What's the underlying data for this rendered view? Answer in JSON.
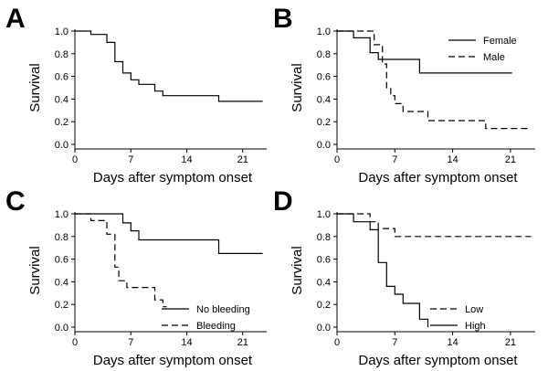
{
  "chart_data": [
    {
      "panel": "A",
      "type": "line",
      "xlabel": "Days after symptom onset",
      "ylabel": "Survival",
      "xlim": [
        0,
        24
      ],
      "ylim": [
        0,
        1
      ],
      "x_ticks": [
        "0",
        "7",
        "14",
        "21"
      ],
      "y_ticks": [
        "0.0",
        "0.2",
        "0.4",
        "0.6",
        "0.8",
        "1.0"
      ],
      "legend": null,
      "series": [
        {
          "style": "solid",
          "steps": [
            [
              0,
              1.0
            ],
            [
              2,
              0.97
            ],
            [
              3,
              0.97
            ],
            [
              4,
              0.9
            ],
            [
              5,
              0.73
            ],
            [
              6,
              0.63
            ],
            [
              7,
              0.57
            ],
            [
              8,
              0.53
            ],
            [
              10,
              0.47
            ],
            [
              11,
              0.43
            ],
            [
              18,
              0.38
            ],
            [
              23.5,
              0.38
            ]
          ]
        }
      ]
    },
    {
      "panel": "B",
      "type": "line",
      "xlabel": "Days after symptom onset",
      "ylabel": "Survival",
      "xlim": [
        0,
        24
      ],
      "ylim": [
        0,
        1
      ],
      "x_ticks": [
        "0",
        "7",
        "14",
        "21"
      ],
      "y_ticks": [
        "0.0",
        "0.2",
        "0.4",
        "0.6",
        "0.8",
        "1.0"
      ],
      "legend": "top-right",
      "series": [
        {
          "name": "Female",
          "style": "solid",
          "steps": [
            [
              0,
              1.0
            ],
            [
              2,
              0.94
            ],
            [
              4,
              0.81
            ],
            [
              5,
              0.75
            ],
            [
              10,
              0.63
            ],
            [
              21.2,
              0.63
            ]
          ]
        },
        {
          "name": "Male",
          "style": "dashed",
          "steps": [
            [
              0,
              1.0
            ],
            [
              4.5,
              0.88
            ],
            [
              5.5,
              0.71
            ],
            [
              6,
              0.5
            ],
            [
              6.5,
              0.43
            ],
            [
              7,
              0.36
            ],
            [
              8,
              0.29
            ],
            [
              11,
              0.21
            ],
            [
              18,
              0.14
            ],
            [
              23.5,
              0.14
            ]
          ]
        }
      ]
    },
    {
      "panel": "C",
      "type": "line",
      "xlabel": "Days after symptom onset",
      "ylabel": "Survival",
      "xlim": [
        0,
        24
      ],
      "ylim": [
        0,
        1
      ],
      "x_ticks": [
        "0",
        "7",
        "14",
        "21"
      ],
      "y_ticks": [
        "0.0",
        "0.2",
        "0.4",
        "0.6",
        "0.8",
        "1.0"
      ],
      "legend": "bottom-right",
      "series": [
        {
          "name": "No bleeding",
          "style": "solid",
          "steps": [
            [
              0,
              1.0
            ],
            [
              6,
              0.92
            ],
            [
              7,
              0.85
            ],
            [
              8,
              0.77
            ],
            [
              18,
              0.65
            ],
            [
              23.5,
              0.65
            ]
          ]
        },
        {
          "name": "Bleeding",
          "style": "dashed",
          "steps": [
            [
              0,
              1.0
            ],
            [
              2,
              0.94
            ],
            [
              4,
              0.82
            ],
            [
              5,
              0.53
            ],
            [
              5.5,
              0.41
            ],
            [
              6.5,
              0.35
            ],
            [
              10,
              0.24
            ],
            [
              11,
              0.18
            ],
            [
              11.5,
              0.18
            ]
          ]
        }
      ]
    },
    {
      "panel": "D",
      "type": "line",
      "xlabel": "Days after symptom onset",
      "ylabel": "Survival",
      "xlim": [
        0,
        24
      ],
      "ylim": [
        0,
        1
      ],
      "x_ticks": [
        "0",
        "7",
        "14",
        "21"
      ],
      "y_ticks": [
        "0.0",
        "0.2",
        "0.4",
        "0.6",
        "0.8",
        "1.0"
      ],
      "legend": "bottom-right",
      "series": [
        {
          "name": "Low",
          "style": "dashed",
          "steps": [
            [
              0,
              1.0
            ],
            [
              4,
              0.93
            ],
            [
              5,
              0.87
            ],
            [
              7,
              0.8
            ],
            [
              23.5,
              0.8
            ]
          ]
        },
        {
          "name": "High",
          "style": "solid",
          "steps": [
            [
              0,
              1.0
            ],
            [
              2,
              0.93
            ],
            [
              4,
              0.86
            ],
            [
              5,
              0.57
            ],
            [
              6,
              0.36
            ],
            [
              7,
              0.29
            ],
            [
              8,
              0.21
            ],
            [
              10,
              0.07
            ],
            [
              11,
              0.0
            ]
          ]
        }
      ]
    }
  ]
}
